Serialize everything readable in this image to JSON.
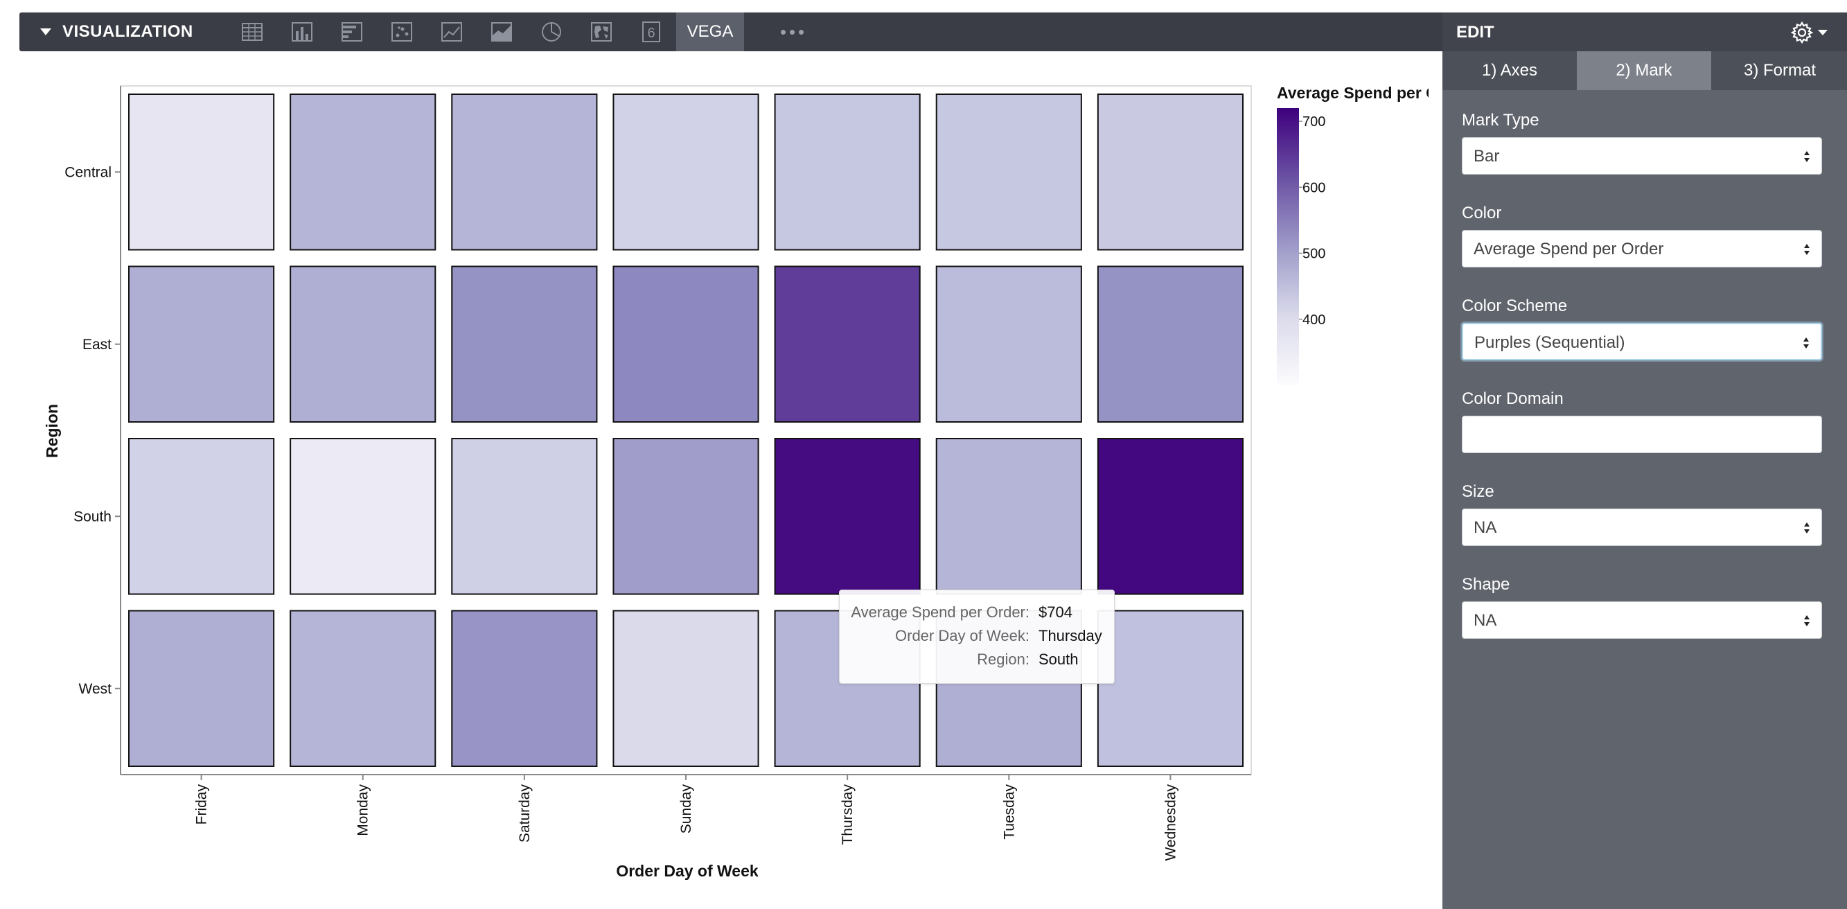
{
  "toolbar": {
    "title": "VISUALIZATION",
    "chart_types": [
      "table-icon",
      "bar-chart-icon",
      "horizontal-bar-icon",
      "scatter-icon",
      "line-chart-icon",
      "area-chart-icon",
      "pie-chart-icon",
      "map-icon",
      "single-value-icon"
    ],
    "single_value_glyph": "6",
    "active_type": "VEGA",
    "more_label": "more"
  },
  "edit_panel": {
    "title": "EDIT",
    "tabs": [
      "1) Axes",
      "2) Mark",
      "3) Format"
    ],
    "active_tab": "2) Mark",
    "fields": {
      "mark_type": {
        "label": "Mark Type",
        "value": "Bar"
      },
      "color": {
        "label": "Color",
        "value": "Average Spend per Order"
      },
      "color_scheme": {
        "label": "Color Scheme",
        "value": "Purples (Sequential)"
      },
      "color_domain": {
        "label": "Color Domain",
        "value": ""
      },
      "size": {
        "label": "Size",
        "value": "NA"
      },
      "shape": {
        "label": "Shape",
        "value": "NA"
      }
    }
  },
  "tooltip": {
    "rows": [
      {
        "key": "Average Spend per Order:",
        "value": "$704"
      },
      {
        "key": "Order Day of Week:",
        "value": "Thursday"
      },
      {
        "key": "Region:",
        "value": "South"
      }
    ]
  },
  "colors": {
    "scheme_low": "#fcfbfd",
    "scheme_high": "#3f007d",
    "toolbar_bg": "#3a3d45",
    "panel_bg": "#60646d"
  },
  "chart_data": {
    "type": "heatmap",
    "title": "",
    "xlabel": "Order Day of Week",
    "ylabel": "Region",
    "x": [
      "Friday",
      "Monday",
      "Saturday",
      "Sunday",
      "Thursday",
      "Tuesday",
      "Wednesday"
    ],
    "y": [
      "Central",
      "East",
      "South",
      "West"
    ],
    "values": [
      [
        375,
        470,
        470,
        420,
        440,
        440,
        435
      ],
      [
        480,
        480,
        525,
        540,
        640,
        460,
        525
      ],
      [
        420,
        360,
        425,
        505,
        704,
        470,
        710
      ],
      [
        480,
        470,
        520,
        405,
        470,
        480,
        450
      ]
    ],
    "color_domain": [
      300,
      720
    ],
    "legend": {
      "title": "Average Spend per Order",
      "ticks": [
        400,
        500,
        600,
        700
      ],
      "position": "top-right"
    }
  }
}
